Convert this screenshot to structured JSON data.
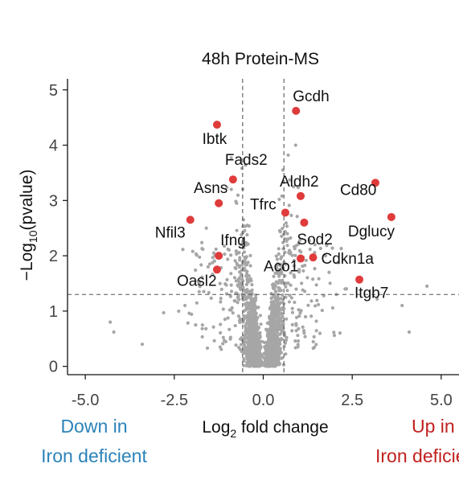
{
  "chart_data": {
    "type": "scatter",
    "title": "48h Protein-MS",
    "xlabel_main": "Log",
    "xlabel_sub": "2",
    "xlabel_rest": " fold change",
    "ylabel_main": "−Log",
    "ylabel_sub": "10",
    "ylabel_rest": "(pvalue)",
    "xlim": [
      -5.5,
      5.5
    ],
    "ylim": [
      -0.15,
      5.2
    ],
    "xticks": [
      -5,
      -2.5,
      0,
      2.5,
      5
    ],
    "xtick_labels": [
      "-5.0",
      "-2.5",
      "0.0",
      "2.5",
      "5.0"
    ],
    "yticks": [
      0,
      1,
      2,
      3,
      4,
      5
    ],
    "ytick_labels": [
      "0",
      "1",
      "2",
      "3",
      "4",
      "5"
    ],
    "fc_threshold": [
      -0.58,
      0.58
    ],
    "p_threshold": 1.3,
    "grid": false,
    "left_caption": [
      "Down in",
      "Iron deficient"
    ],
    "right_caption": [
      "Up in",
      "Iron deficient"
    ],
    "colors": {
      "points": "#a6a6a6",
      "highlight": "#e03b3b",
      "down_caption": "#2b83ba",
      "up_caption": "#c0211f",
      "threshold": "#555555"
    },
    "highlighted": [
      {
        "label": "Gcdh",
        "x": 0.92,
        "y": 4.62
      },
      {
        "label": "Ibtk",
        "x": -1.3,
        "y": 4.37
      },
      {
        "label": "Fads2",
        "x": -0.85,
        "y": 3.38
      },
      {
        "label": "Asns",
        "x": -1.25,
        "y": 2.95
      },
      {
        "label": "Aldh2",
        "x": 1.05,
        "y": 3.08
      },
      {
        "label": "Cd80",
        "x": 3.15,
        "y": 3.32
      },
      {
        "label": "Tfrc",
        "x": 0.62,
        "y": 2.78
      },
      {
        "label": "Nfil3",
        "x": -2.05,
        "y": 2.65
      },
      {
        "label": "Sod2",
        "x": 1.15,
        "y": 2.6
      },
      {
        "label": "Dglucy",
        "x": 3.6,
        "y": 2.7
      },
      {
        "label": "Ifng",
        "x": -1.25,
        "y": 2.0
      },
      {
        "label": "Cdkn1a",
        "x": 1.4,
        "y": 1.97
      },
      {
        "label": "Aco1",
        "x": 1.05,
        "y": 1.95
      },
      {
        "label": "Oasl2",
        "x": -1.3,
        "y": 1.75
      },
      {
        "label": "Itgb7",
        "x": 2.7,
        "y": 1.57
      }
    ],
    "background_points": [
      [
        -4.3,
        0.8
      ],
      [
        -4.2,
        0.62
      ],
      [
        -2.8,
        0.97
      ],
      [
        -3.4,
        0.4
      ],
      [
        4.1,
        0.62
      ],
      [
        4.6,
        1.45
      ],
      [
        3.9,
        1.1
      ],
      [
        3.2,
        1.22
      ],
      [
        2.3,
        1.4
      ],
      [
        -2.2,
        1.1
      ],
      [
        -1.9,
        0.75
      ],
      [
        -0.9,
        3.77
      ],
      [
        0.7,
        3.82
      ],
      [
        0.55,
        3.55
      ],
      [
        -0.6,
        3.58
      ],
      [
        -0.9,
        3.2
      ],
      [
        0.85,
        3.25
      ],
      [
        -0.75,
        2.95
      ],
      [
        0.45,
        3.02
      ],
      [
        -1.6,
        2.5
      ],
      [
        1.75,
        2.0
      ],
      [
        2.05,
        1.3
      ],
      [
        1.85,
        1.7
      ],
      [
        -1.55,
        1.8
      ],
      [
        -1.8,
        1.35
      ]
    ]
  }
}
